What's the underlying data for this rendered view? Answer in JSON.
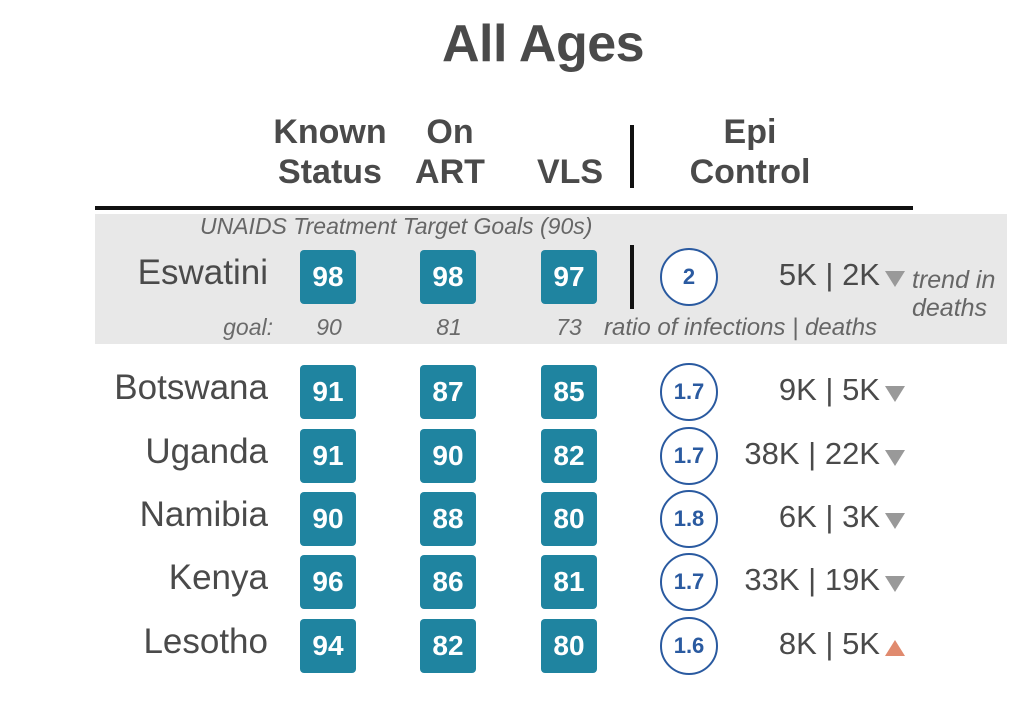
{
  "chart_data": {
    "type": "table",
    "title": "All Ages",
    "columns": [
      "Known Status",
      "On ART",
      "VLS",
      "Epi Control"
    ],
    "highlight_note": "UNAIDS Treatment Target Goals (90s)",
    "goal_label": "goal:",
    "goals": [
      "90",
      "81",
      "73"
    ],
    "ratio_note": "ratio of infections | deaths",
    "trend_note": "trend in deaths",
    "rows": [
      {
        "country": "Eswatini",
        "known_status": "98",
        "on_art": "98",
        "vls": "97",
        "ratio": "2",
        "counts": "5K | 2K",
        "trend": "down"
      },
      {
        "country": "Botswana",
        "known_status": "91",
        "on_art": "87",
        "vls": "85",
        "ratio": "1.7",
        "counts": "9K | 5K",
        "trend": "down"
      },
      {
        "country": "Uganda",
        "known_status": "91",
        "on_art": "90",
        "vls": "82",
        "ratio": "1.7",
        "counts": "38K | 22K",
        "trend": "down"
      },
      {
        "country": "Namibia",
        "known_status": "90",
        "on_art": "88",
        "vls": "80",
        "ratio": "1.8",
        "counts": "6K | 3K",
        "trend": "down"
      },
      {
        "country": "Kenya",
        "known_status": "96",
        "on_art": "86",
        "vls": "81",
        "ratio": "1.7",
        "counts": "33K | 19K",
        "trend": "down"
      },
      {
        "country": "Lesotho",
        "known_status": "94",
        "on_art": "82",
        "vls": "80",
        "ratio": "1.6",
        "counts": "8K | 5K",
        "trend": "up"
      }
    ],
    "colors": {
      "box": "#1f84a0",
      "circle": "#2a5aa0",
      "down": "#999999",
      "up": "#e08a6e",
      "band": "#e8e8e8"
    }
  }
}
